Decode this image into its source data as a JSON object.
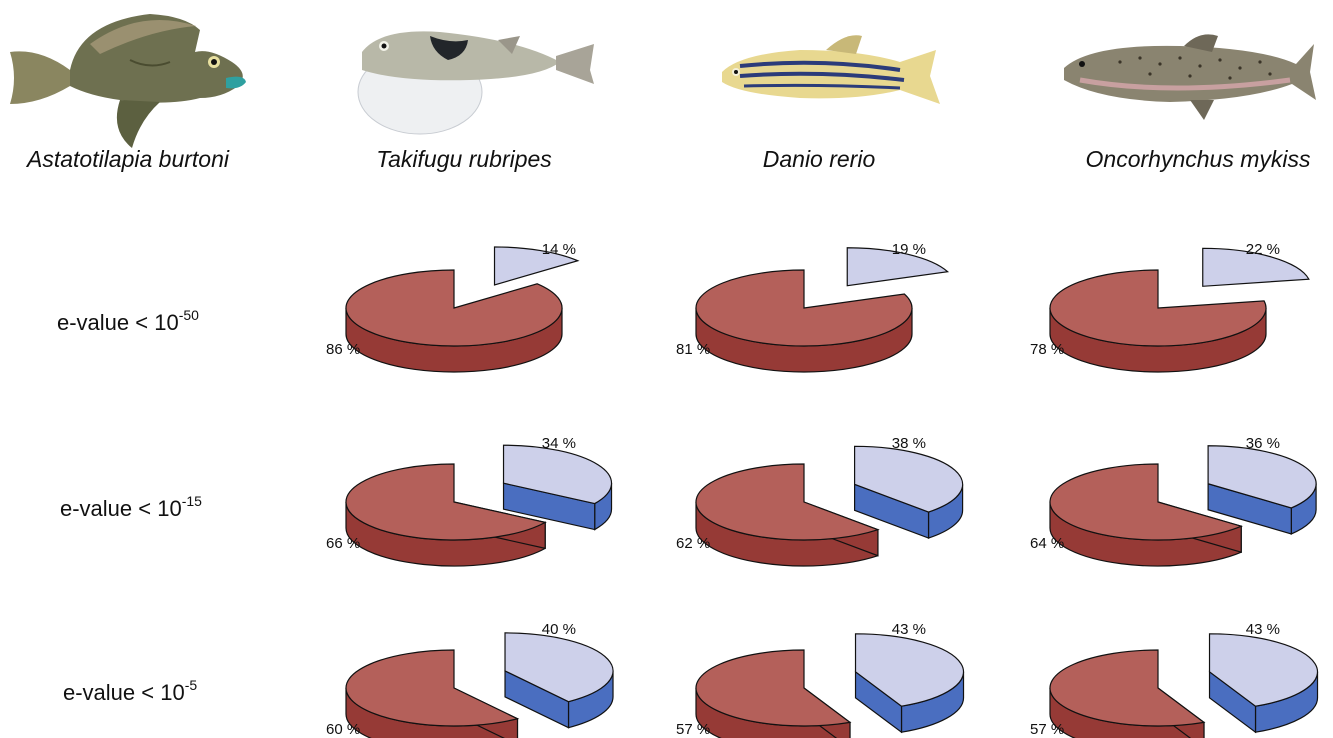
{
  "species": [
    {
      "name": "Astatotilapia burtoni",
      "icon": "cichlid-fish-icon"
    },
    {
      "name": "Takifugu rubripes",
      "icon": "pufferfish-icon"
    },
    {
      "name": "Danio rerio",
      "icon": "zebrafish-icon"
    },
    {
      "name": "Oncorhynchus mykiss",
      "icon": "rainbow-trout-icon"
    }
  ],
  "rows": [
    {
      "label_prefix": "e-value < 10",
      "label_exp": "-50"
    },
    {
      "label_prefix": "e-value < 10",
      "label_exp": "-15"
    },
    {
      "label_prefix": "e-value < 10",
      "label_exp": "-5"
    }
  ],
  "colors": {
    "major_top": "#b4605a",
    "major_side": "#963a36",
    "minor_top": "#cdd0ea",
    "minor_side": "#4a6ec0",
    "outline": "#111111"
  },
  "chart_data": [
    {
      "type": "pie",
      "row": "e-value < 10-50",
      "species": "Takifugu rubripes",
      "values": [
        86,
        14
      ],
      "labels": [
        "86 %",
        "14 %"
      ]
    },
    {
      "type": "pie",
      "row": "e-value < 10-50",
      "species": "Danio rerio",
      "values": [
        81,
        19
      ],
      "labels": [
        "81 %",
        "19 %"
      ]
    },
    {
      "type": "pie",
      "row": "e-value < 10-50",
      "species": "Oncorhynchus mykiss",
      "values": [
        78,
        22
      ],
      "labels": [
        "78 %",
        "22 %"
      ]
    },
    {
      "type": "pie",
      "row": "e-value < 10-15",
      "species": "Takifugu rubripes",
      "values": [
        66,
        34
      ],
      "labels": [
        "66 %",
        "34 %"
      ]
    },
    {
      "type": "pie",
      "row": "e-value < 10-15",
      "species": "Danio rerio",
      "values": [
        62,
        38
      ],
      "labels": [
        "62 %",
        "38 %"
      ]
    },
    {
      "type": "pie",
      "row": "e-value < 10-15",
      "species": "Oncorhynchus mykiss",
      "values": [
        64,
        36
      ],
      "labels": [
        "64 %",
        "36 %"
      ]
    },
    {
      "type": "pie",
      "row": "e-value < 10-5",
      "species": "Takifugu rubripes",
      "values": [
        60,
        40
      ],
      "labels": [
        "60 %",
        "40 %"
      ]
    },
    {
      "type": "pie",
      "row": "e-value < 10-5",
      "species": "Danio rerio",
      "values": [
        57,
        43
      ],
      "labels": [
        "57 %",
        "43 %"
      ]
    },
    {
      "type": "pie",
      "row": "e-value < 10-5",
      "species": "Oncorhynchus mykiss",
      "values": [
        57,
        43
      ],
      "labels": [
        "57 %",
        "43 %"
      ]
    }
  ]
}
